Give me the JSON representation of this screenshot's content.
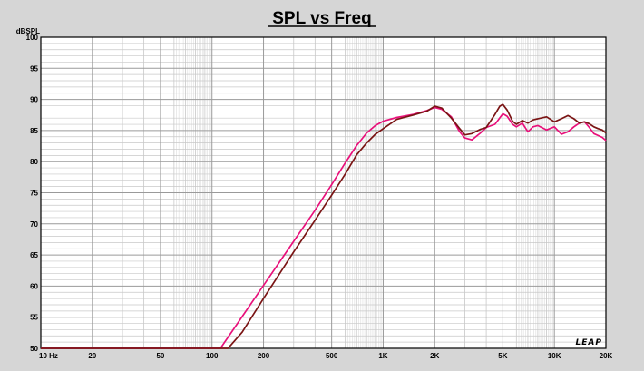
{
  "chart_data": {
    "type": "line",
    "title": "SPL vs Freq",
    "ylabel": "dBSPL",
    "xscale": "log",
    "xlim": [
      10,
      20000
    ],
    "ylim": [
      50,
      100
    ],
    "grid": true,
    "yticks": [
      "50",
      "55",
      "60",
      "65",
      "70",
      "75",
      "80",
      "85",
      "90",
      "95",
      "100"
    ],
    "xticks": [
      {
        "value": 10,
        "label": "10  Hz"
      },
      {
        "value": 20,
        "label": "20"
      },
      {
        "value": 50,
        "label": "50"
      },
      {
        "value": 100,
        "label": "100"
      },
      {
        "value": 200,
        "label": "200"
      },
      {
        "value": 500,
        "label": "500"
      },
      {
        "value": 1000,
        "label": "1K"
      },
      {
        "value": 2000,
        "label": "2K"
      },
      {
        "value": 5000,
        "label": "5K"
      },
      {
        "value": 10000,
        "label": "10K"
      },
      {
        "value": 20000,
        "label": "20K"
      }
    ],
    "logo_text": "LEAP",
    "colors": {
      "plot_bg": "#ffffff",
      "page_bg": "#d6d6d6",
      "grid_major": "#9a9a9a",
      "grid_minor": "#c8c8c8"
    },
    "series": [
      {
        "color": "#e8107a",
        "x": [
          10,
          100,
          112,
          150,
          200,
          300,
          400,
          500,
          600,
          700,
          800,
          900,
          1000,
          1200,
          1500,
          1800,
          2000,
          2200,
          2500,
          2800,
          3000,
          3300,
          3700,
          4000,
          4500,
          5000,
          5300,
          5700,
          6000,
          6500,
          7000,
          7500,
          8000,
          9000,
          10000,
          11000,
          12000,
          13000,
          14000,
          15000,
          16000,
          17000,
          18000,
          19000,
          20000
        ],
        "y": [
          50,
          50,
          50,
          55.1,
          60.1,
          67.2,
          72.2,
          76.3,
          79.8,
          82.6,
          84.6,
          85.8,
          86.5,
          87.1,
          87.6,
          88.2,
          88.7,
          88.4,
          87.2,
          84.8,
          83.8,
          83.5,
          84.6,
          85.5,
          86.0,
          87.7,
          87.3,
          86.0,
          85.6,
          86.2,
          84.8,
          85.6,
          85.8,
          85.1,
          85.6,
          84.4,
          84.8,
          85.6,
          86.2,
          86.4,
          85.5,
          84.5,
          84.2,
          83.9,
          83.4
        ]
      },
      {
        "color": "#7a1414",
        "x": [
          10,
          100,
          124,
          150,
          200,
          300,
          400,
          500,
          600,
          700,
          800,
          900,
          1000,
          1200,
          1500,
          1800,
          2000,
          2200,
          2500,
          2800,
          3000,
          3300,
          3700,
          4000,
          4500,
          4800,
          5000,
          5300,
          5700,
          6000,
          6500,
          7000,
          7500,
          8000,
          9000,
          10000,
          11000,
          12000,
          13000,
          14000,
          15000,
          16000,
          17000,
          18000,
          19000,
          20000
        ],
        "y": [
          50,
          50,
          50,
          52.6,
          58.0,
          65.5,
          70.6,
          74.6,
          78.0,
          81.1,
          83.0,
          84.4,
          85.3,
          86.8,
          87.5,
          88.1,
          88.9,
          88.6,
          87.0,
          85.3,
          84.3,
          84.5,
          85.2,
          85.5,
          87.6,
          88.9,
          89.2,
          88.3,
          86.5,
          86.0,
          86.6,
          86.2,
          86.7,
          86.9,
          87.2,
          86.4,
          86.9,
          87.4,
          86.9,
          86.2,
          86.4,
          86.1,
          85.6,
          85.3,
          85.1,
          84.6
        ]
      }
    ]
  }
}
